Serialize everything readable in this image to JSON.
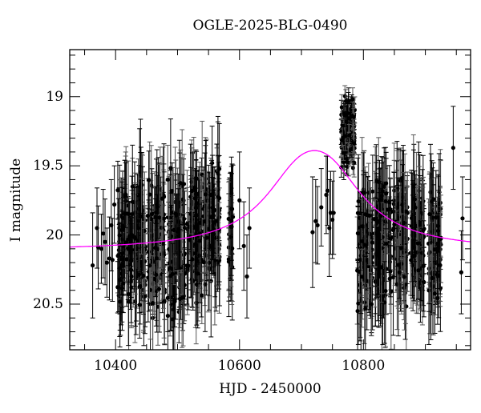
{
  "chart_data": {
    "type": "scatter",
    "title": "OGLE-2025-BLG-0490",
    "xlabel": "HJD - 2450000",
    "ylabel": "I magnitude",
    "xlim": [
      10326,
      10973
    ],
    "ylim": [
      20.83,
      18.66
    ],
    "y_inverted": true,
    "x_ticks": [
      10400,
      10600,
      10800
    ],
    "x_tick_labels": [
      "10400",
      "10600",
      "10800"
    ],
    "x_minor_step": 50,
    "y_ticks": [
      19,
      19.5,
      20,
      20.5
    ],
    "y_tick_labels": [
      "19",
      "19.5",
      "20",
      "20.5"
    ],
    "y_minor_step": 0.1,
    "grid": false,
    "legend": null,
    "series": [
      {
        "name": "OGLE I-band photometry",
        "style": "black points with error bars",
        "color": "#000000",
        "sparse_points": [
          {
            "x": 10363,
            "y": 20.22,
            "err": 0.38
          },
          {
            "x": 10370,
            "y": 19.95,
            "err": 0.29
          },
          {
            "x": 10372,
            "y": 20.09,
            "err": 0.3
          },
          {
            "x": 10377,
            "y": 20.1,
            "err": 0.25
          },
          {
            "x": 10380,
            "y": 19.99,
            "err": 0.32
          },
          {
            "x": 10383,
            "y": 20.05,
            "err": 0.31
          },
          {
            "x": 10386,
            "y": 20.2,
            "err": 0.25
          },
          {
            "x": 10390,
            "y": 20.17,
            "err": 0.3
          },
          {
            "x": 10393,
            "y": 19.93,
            "err": 0.33
          },
          {
            "x": 10395,
            "y": 20.18,
            "err": 0.3
          },
          {
            "x": 10398,
            "y": 19.78,
            "err": 0.28
          },
          {
            "x": 10600,
            "y": 19.75,
            "err": 0.35
          },
          {
            "x": 10607,
            "y": 20.08,
            "err": 0.32
          },
          {
            "x": 10612,
            "y": 20.3,
            "err": 0.3
          },
          {
            "x": 10616,
            "y": 19.95,
            "err": 0.29
          },
          {
            "x": 10718,
            "y": 19.98,
            "err": 0.4
          },
          {
            "x": 10723,
            "y": 19.9,
            "err": 0.3
          },
          {
            "x": 10726,
            "y": 19.93,
            "err": 0.28
          },
          {
            "x": 10732,
            "y": 19.8,
            "err": 0.28
          },
          {
            "x": 10740,
            "y": 19.71,
            "err": 0.28
          },
          {
            "x": 10742,
            "y": 19.68,
            "err": 0.25
          },
          {
            "x": 10745,
            "y": 19.95,
            "err": 0.35
          },
          {
            "x": 10747,
            "y": 19.84,
            "err": 0.3
          },
          {
            "x": 10750,
            "y": 19.89,
            "err": 0.28
          },
          {
            "x": 10752,
            "y": 19.84,
            "err": 0.3
          },
          {
            "x": 10945,
            "y": 19.37,
            "err": 0.3
          },
          {
            "x": 10958,
            "y": 20.27,
            "err": 0.3
          },
          {
            "x": 10960,
            "y": 19.88,
            "err": 0.3
          }
        ],
        "dense_clusters": [
          {
            "x_range": [
              10402,
              10418
            ],
            "y_range": [
              19.55,
              20.55
            ],
            "err": 0.3
          },
          {
            "x_range": [
              10420,
              10448
            ],
            "y_range": [
              19.5,
              20.6
            ],
            "err": 0.3
          },
          {
            "x_range": [
              10452,
              10480
            ],
            "y_range": [
              19.52,
              20.65
            ],
            "err": 0.3
          },
          {
            "x_range": [
              10484,
              10512
            ],
            "y_range": [
              19.48,
              20.7
            ],
            "err": 0.3
          },
          {
            "x_range": [
              10515,
              10540
            ],
            "y_range": [
              19.47,
              20.55
            ],
            "err": 0.3
          },
          {
            "x_range": [
              10542,
              10568
            ],
            "y_range": [
              19.45,
              20.4
            ],
            "err": 0.3
          },
          {
            "x_range": [
              10582,
              10590
            ],
            "y_range": [
              19.65,
              20.3
            ],
            "err": 0.3
          },
          {
            "x_range": [
              10764,
              10786
            ],
            "y_range": [
              18.97,
              19.55
            ],
            "err": 0.08
          },
          {
            "x_range": [
              10790,
              10815
            ],
            "y_range": [
              19.55,
              20.6
            ],
            "err": 0.3
          },
          {
            "x_range": [
              10818,
              10845
            ],
            "y_range": [
              19.52,
              20.55
            ],
            "err": 0.3
          },
          {
            "x_range": [
              10848,
              10872
            ],
            "y_range": [
              19.5,
              20.55
            ],
            "err": 0.3
          },
          {
            "x_range": [
              10876,
              10898
            ],
            "y_range": [
              19.55,
              20.45
            ],
            "err": 0.3
          },
          {
            "x_range": [
              10905,
              10925
            ],
            "y_range": [
              19.6,
              20.65
            ],
            "err": 0.3
          }
        ]
      },
      {
        "name": "Microlensing model",
        "style": "line",
        "color": "#ff00ff",
        "model": {
          "t0": 10721,
          "peak_mag": 19.39,
          "baseline_mag": 20.115,
          "tE_width_days": 58
        },
        "x": [
          10326,
          10400,
          10500,
          10600,
          10650,
          10680,
          10700,
          10721,
          10740,
          10760,
          10780,
          10800,
          10850,
          10900,
          10973
        ],
        "values": [
          20.11,
          20.09,
          20.05,
          19.92,
          19.77,
          19.62,
          19.5,
          19.39,
          19.45,
          19.6,
          19.74,
          19.84,
          19.96,
          20.02,
          20.06
        ]
      }
    ]
  }
}
